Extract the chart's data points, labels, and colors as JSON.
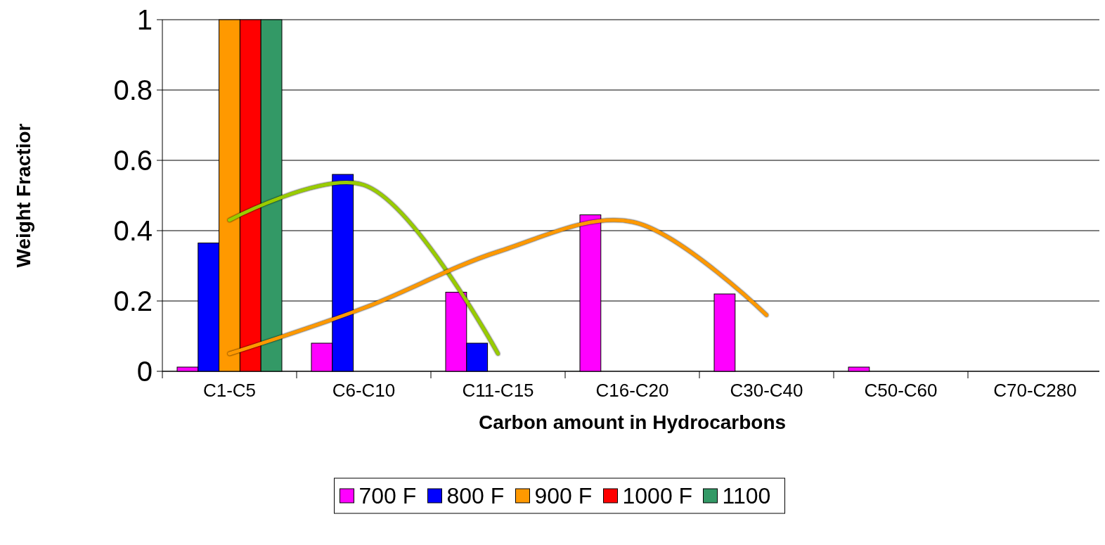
{
  "chart_data": {
    "type": "bar",
    "xlabel": "Carbon amount in Hydrocarbons",
    "ylabel": "Weight Fractior",
    "categories": [
      "C1-C5",
      "C6-C10",
      "C11-C15",
      "C16-C20",
      "C30-C40",
      "C50-C60",
      "C70-C280"
    ],
    "series": [
      {
        "name": "700 F",
        "color": "#ff00ff",
        "values": [
          0.012,
          0.08,
          0.225,
          0.445,
          0.22,
          0.012,
          0
        ]
      },
      {
        "name": "800 F",
        "color": "#0000ff",
        "values": [
          0.365,
          0.56,
          0.08,
          0,
          0,
          0,
          0
        ]
      },
      {
        "name": "900 F",
        "color": "#ff9900",
        "values": [
          1,
          0,
          0,
          0,
          0,
          0,
          0
        ]
      },
      {
        "name": "1000 F",
        "color": "#ff0000",
        "values": [
          1,
          0,
          0,
          0,
          0,
          0,
          0
        ]
      },
      {
        "name": "1100",
        "color": "#339966",
        "values": [
          1,
          0,
          0,
          0,
          0,
          0,
          0
        ]
      },
      {
        "type": "line",
        "color": "#99cc00",
        "values": [
          0.43,
          0.53,
          0.05,
          null,
          null,
          null,
          null
        ]
      },
      {
        "type": "line",
        "color": "#ff9900",
        "values": [
          0.05,
          0.18,
          0.34,
          0.425,
          0.16,
          null,
          null
        ]
      }
    ],
    "ylim": [
      0,
      1
    ],
    "yticks": [
      0,
      0.2,
      0.4,
      0.6,
      0.8,
      1
    ],
    "grid": "y",
    "legend": "bottom"
  }
}
